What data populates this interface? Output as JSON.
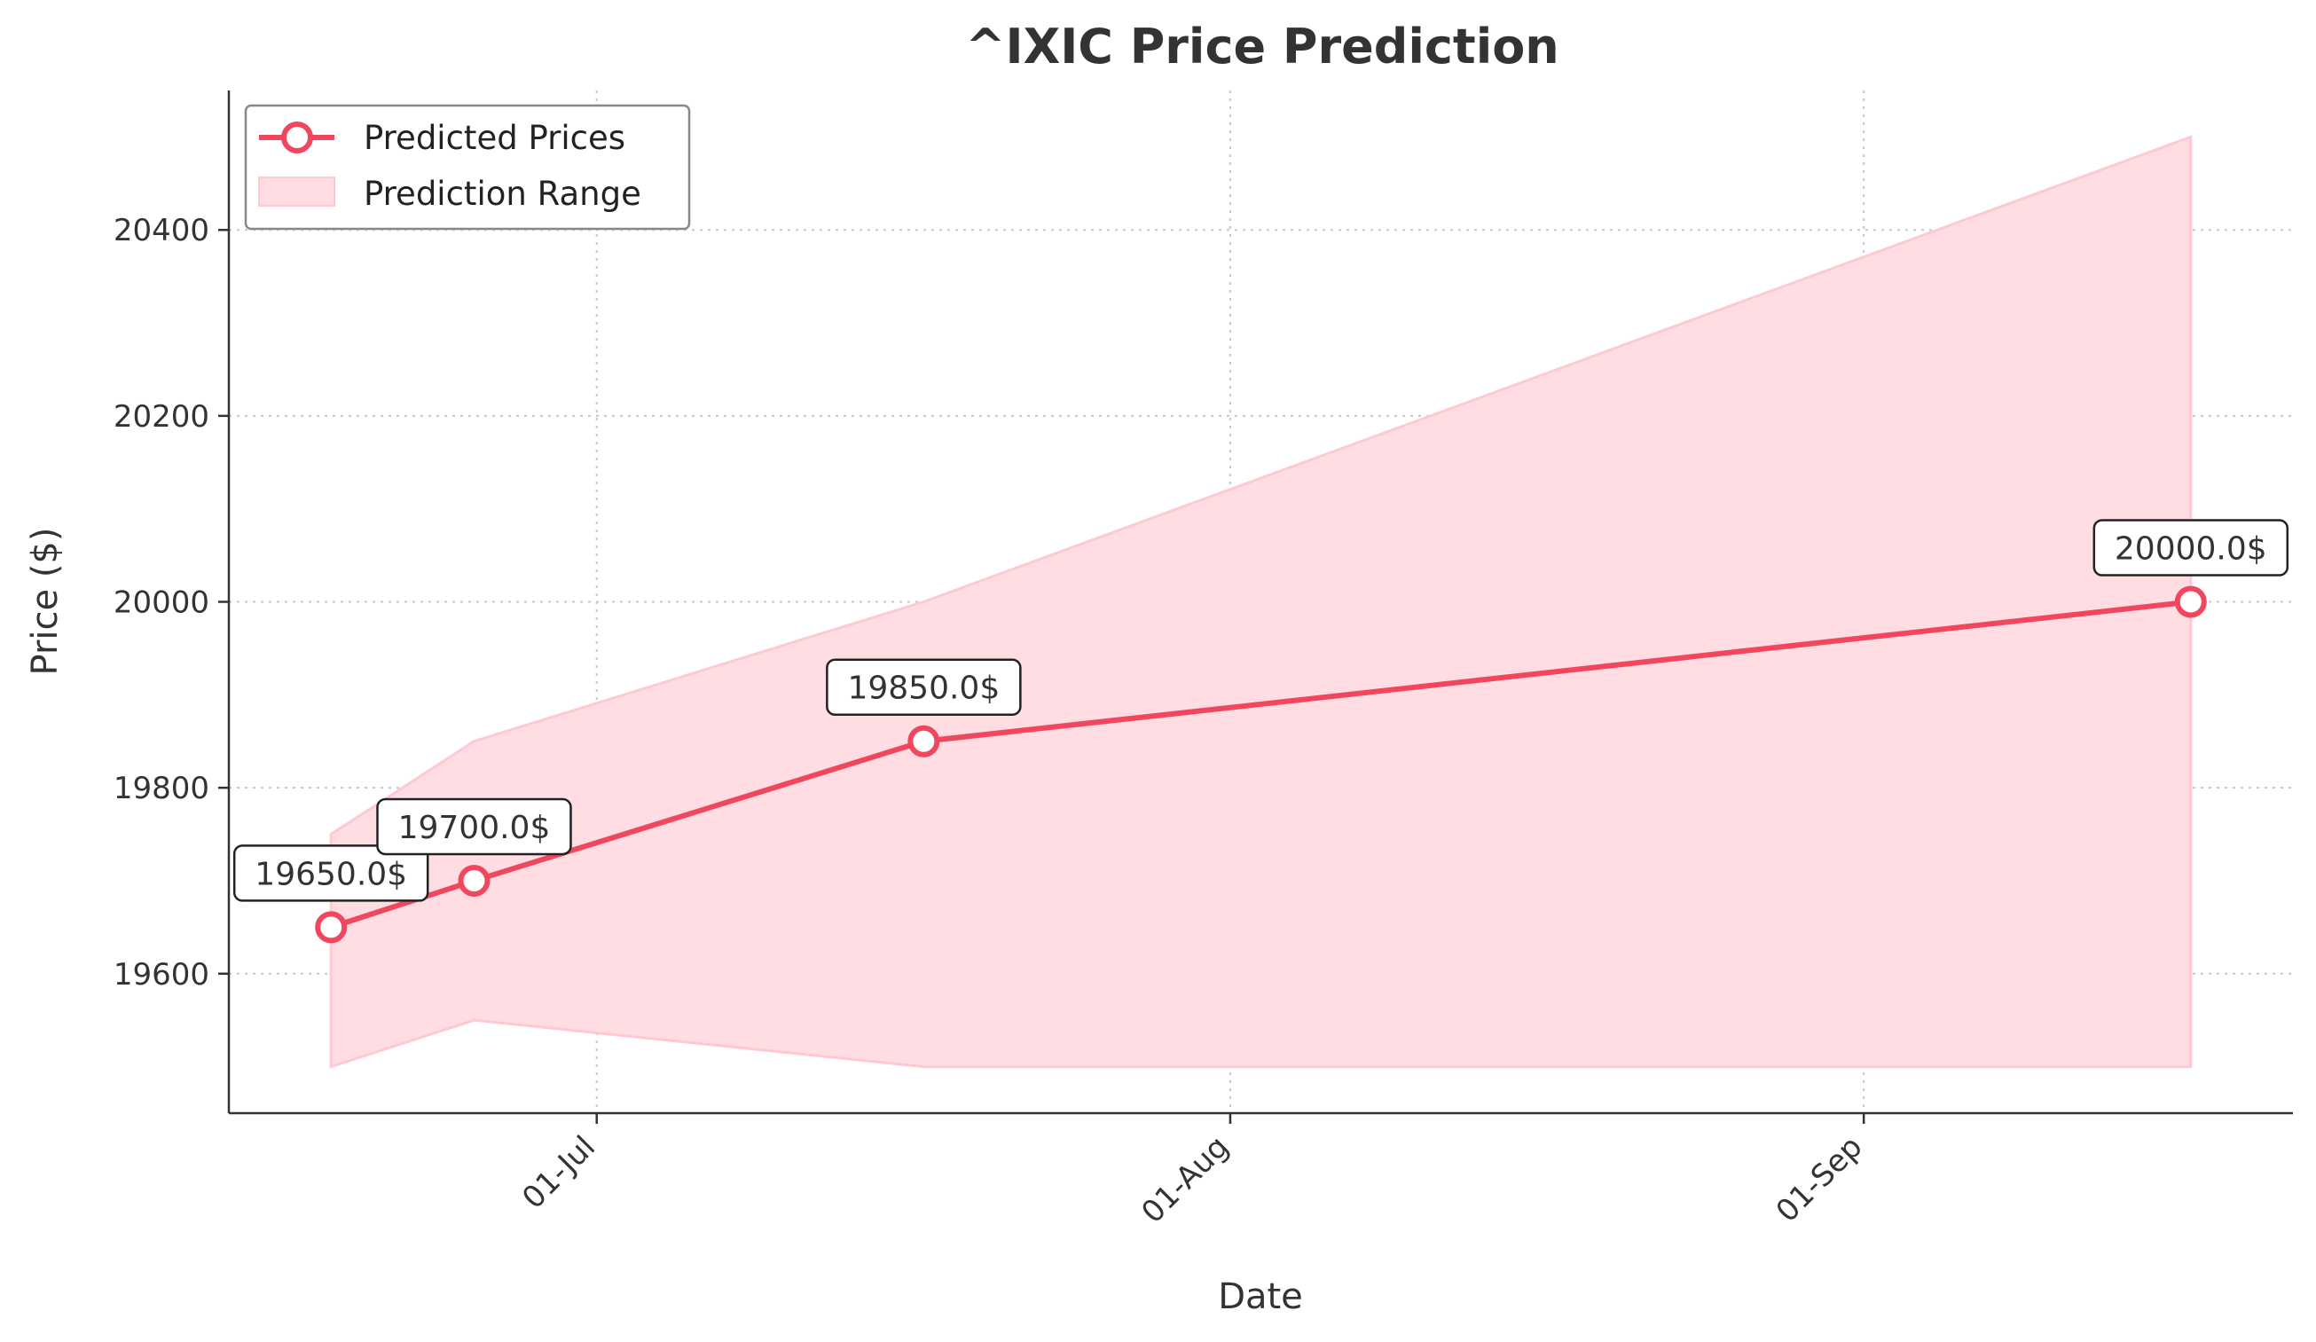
{
  "chart_data": {
    "type": "line",
    "title": "^IXIC Price Prediction",
    "xlabel": "Date",
    "ylabel": "Price ($)",
    "x": [
      "2024-06-18",
      "2024-06-25",
      "2024-07-17",
      "2024-09-17"
    ],
    "series": [
      {
        "name": "Predicted Prices",
        "values": [
          19650,
          19700,
          19850,
          20000
        ],
        "labels": [
          "19650.0$",
          "19700.0$",
          "19850.0$",
          "20000.0$"
        ],
        "color": "#f0475f"
      }
    ],
    "range": {
      "name": "Prediction Range",
      "lower": [
        19500,
        19550,
        19500,
        19500
      ],
      "upper": [
        19750,
        19850,
        20000,
        20500
      ],
      "color": "#ffdde2"
    },
    "xticks": [
      {
        "date": "2024-07-01",
        "label": "01-Jul"
      },
      {
        "date": "2024-08-01",
        "label": "01-Aug"
      },
      {
        "date": "2024-09-01",
        "label": "01-Sep"
      }
    ],
    "yticks": [
      19600,
      19800,
      20000,
      20200,
      20400
    ],
    "xlim": [
      "2024-06-13",
      "2024-09-22"
    ],
    "ylim": [
      19450,
      20550
    ],
    "grid": true,
    "legend_position": "top-left"
  }
}
